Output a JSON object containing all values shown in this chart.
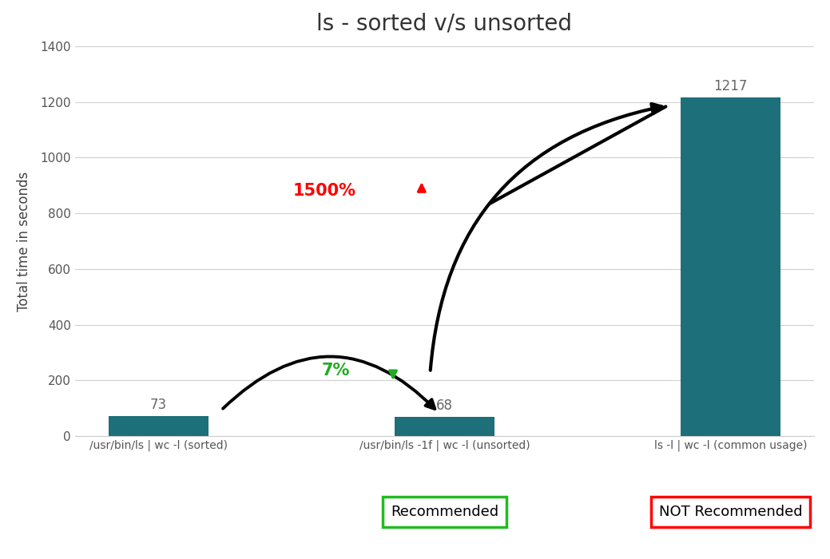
{
  "title": "ls - sorted v/s unsorted",
  "categories": [
    "/usr/bin/ls | wc -l (sorted)",
    "/usr/bin/ls -1f | wc -l (unsorted)",
    "ls -l | wc -l (common usage)"
  ],
  "values": [
    73,
    68,
    1217
  ],
  "bar_color": "#1d6f7a",
  "ylabel": "Total time in seconds",
  "ylim": [
    0,
    1400
  ],
  "yticks": [
    0,
    200,
    400,
    600,
    800,
    1000,
    1200,
    1400
  ],
  "background_color": "#ffffff",
  "title_fontsize": 20,
  "label_fontsize": 12,
  "bar_label_fontsize": 12,
  "annotation_1500_text": "1500%",
  "annotation_7_text": "7%",
  "recommended_text": "Recommended",
  "not_recommended_text": "NOT Recommended",
  "bar_width": 0.35
}
